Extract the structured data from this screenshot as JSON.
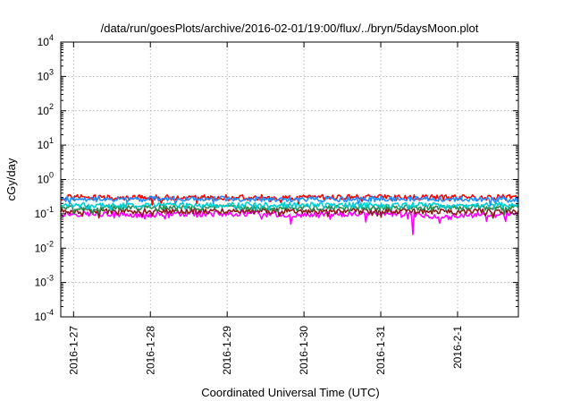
{
  "chart_data": {
    "type": "line",
    "title": "/data/run/goesPlots/archive/2016-02-01/19:00/flux/../bryn/5daysMoon.plot",
    "xlabel": "Coordinated Universal Time (UTC)",
    "ylabel": "cGy/day",
    "yscale": "log",
    "ylim": [
      0.0001,
      10000
    ],
    "xlim": [
      "2016-01-26T20:00",
      "2016-02-01T19:00"
    ],
    "grid": true,
    "legend": "none",
    "x_ticks": [
      {
        "label": "2016-1-27",
        "date": "2016-01-27T00:00"
      },
      {
        "label": "2016-1-28",
        "date": "2016-01-28T00:00"
      },
      {
        "label": "2016-1-29",
        "date": "2016-01-29T00:00"
      },
      {
        "label": "2016-1-30",
        "date": "2016-01-30T00:00"
      },
      {
        "label": "2016-1-31",
        "date": "2016-01-31T00:00"
      },
      {
        "label": "2016-2-1",
        "date": "2016-02-01T00:00"
      }
    ],
    "y_ticks": [
      {
        "base": "10",
        "exp": "-4",
        "value": 0.0001
      },
      {
        "base": "10",
        "exp": "-3",
        "value": 0.001
      },
      {
        "base": "10",
        "exp": "-2",
        "value": 0.01
      },
      {
        "base": "10",
        "exp": "-1",
        "value": 0.1
      },
      {
        "base": "10",
        "exp": "0",
        "value": 1
      },
      {
        "base": "10",
        "exp": "1",
        "value": 10
      },
      {
        "base": "10",
        "exp": "2",
        "value": 100
      },
      {
        "base": "10",
        "exp": "3",
        "value": 1000
      },
      {
        "base": "10",
        "exp": "4",
        "value": 10000
      }
    ],
    "series": [
      {
        "color": "#ff00ff",
        "x": [
          "2016-01-26T20:00",
          "2016-01-27T08:00",
          "2016-01-27T20:00",
          "2016-01-28T08:00",
          "2016-01-28T20:00",
          "2016-01-29T08:00",
          "2016-01-29T20:00",
          "2016-01-30T08:00",
          "2016-01-30T20:00",
          "2016-01-31T08:00",
          "2016-01-31T20:00",
          "2016-02-01T08:00",
          "2016-02-01T19:00"
        ],
        "y": [
          0.1,
          0.1,
          0.09,
          0.1,
          0.1,
          0.1,
          0.09,
          0.1,
          0.1,
          0.1,
          0.08,
          0.1,
          0.1
        ],
        "dips": [
          {
            "x": "2016-01-29T20:00",
            "y": 0.05
          },
          {
            "x": "2016-01-31T10:00",
            "y": 0.025
          },
          {
            "x": "2016-02-01T09:00",
            "y": 0.06
          },
          {
            "x": "2016-02-01T15:00",
            "y": 0.06
          }
        ]
      },
      {
        "color": "#8b1a1a",
        "x": [
          "2016-01-26T20:00",
          "2016-01-27T08:00",
          "2016-01-27T20:00",
          "2016-01-28T08:00",
          "2016-01-28T20:00",
          "2016-01-29T08:00",
          "2016-01-29T20:00",
          "2016-01-30T08:00",
          "2016-01-30T20:00",
          "2016-01-31T08:00",
          "2016-01-31T20:00",
          "2016-02-01T08:00",
          "2016-02-01T19:00"
        ],
        "y": [
          0.12,
          0.12,
          0.12,
          0.12,
          0.12,
          0.12,
          0.12,
          0.12,
          0.12,
          0.12,
          0.12,
          0.12,
          0.12
        ]
      },
      {
        "color": "#2e8b57",
        "x": [
          "2016-01-26T20:00",
          "2016-01-27T08:00",
          "2016-01-27T20:00",
          "2016-01-28T08:00",
          "2016-01-28T20:00",
          "2016-01-29T08:00",
          "2016-01-29T20:00",
          "2016-01-30T08:00",
          "2016-01-30T20:00",
          "2016-01-31T08:00",
          "2016-01-31T20:00",
          "2016-02-01T08:00",
          "2016-02-01T19:00"
        ],
        "y": [
          0.15,
          0.15,
          0.15,
          0.15,
          0.15,
          0.15,
          0.15,
          0.15,
          0.15,
          0.15,
          0.15,
          0.15,
          0.15
        ]
      },
      {
        "color": "#00ced1",
        "x": [
          "2016-01-26T20:00",
          "2016-01-27T08:00",
          "2016-01-27T20:00",
          "2016-01-28T08:00",
          "2016-01-28T20:00",
          "2016-01-29T08:00",
          "2016-01-29T20:00",
          "2016-01-30T08:00",
          "2016-01-30T20:00",
          "2016-01-31T08:00",
          "2016-01-31T20:00",
          "2016-02-01T08:00",
          "2016-02-01T19:00"
        ],
        "y": [
          0.18,
          0.18,
          0.18,
          0.18,
          0.18,
          0.18,
          0.18,
          0.18,
          0.18,
          0.18,
          0.18,
          0.18,
          0.18
        ]
      },
      {
        "color": "#ff0000",
        "x": [
          "2016-01-26T20:00",
          "2016-01-27T08:00",
          "2016-01-27T20:00",
          "2016-01-28T08:00",
          "2016-01-28T20:00",
          "2016-01-29T08:00",
          "2016-01-29T20:00",
          "2016-01-30T08:00",
          "2016-01-30T20:00",
          "2016-01-31T08:00",
          "2016-01-31T20:00",
          "2016-02-01T08:00",
          "2016-02-01T19:00"
        ],
        "y": [
          0.3,
          0.3,
          0.3,
          0.3,
          0.3,
          0.3,
          0.3,
          0.3,
          0.3,
          0.3,
          0.3,
          0.3,
          0.3
        ]
      },
      {
        "color": "#1e90ff",
        "x": [
          "2016-01-26T20:00",
          "2016-01-27T08:00",
          "2016-01-27T20:00",
          "2016-01-28T08:00",
          "2016-01-28T20:00",
          "2016-01-29T08:00",
          "2016-01-29T20:00",
          "2016-01-30T08:00",
          "2016-01-30T20:00",
          "2016-01-31T08:00",
          "2016-01-31T20:00",
          "2016-02-01T08:00",
          "2016-02-01T19:00"
        ],
        "y": [
          0.27,
          0.27,
          0.27,
          0.27,
          0.27,
          0.27,
          0.27,
          0.27,
          0.27,
          0.27,
          0.27,
          0.27,
          0.27
        ]
      }
    ]
  }
}
